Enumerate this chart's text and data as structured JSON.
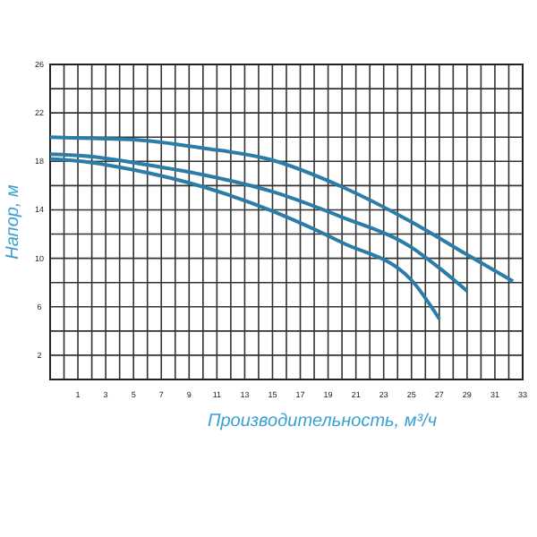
{
  "chart_data": {
    "type": "line",
    "xlabel": "Производительность, м³/ч",
    "ylabel": "Напор, м",
    "xlim": [
      -1,
      33
    ],
    "ylim": [
      0,
      26
    ],
    "xticks": [
      {
        "value": 0,
        "label": null
      },
      1,
      {
        "value": 2,
        "label": null
      },
      3,
      {
        "value": 4,
        "label": null
      },
      5,
      {
        "value": 6,
        "label": null
      },
      7,
      {
        "value": 8,
        "label": null
      },
      9,
      {
        "value": 10,
        "label": null
      },
      11,
      {
        "value": 12,
        "label": null
      },
      13,
      {
        "value": 14,
        "label": null
      },
      15,
      {
        "value": 16,
        "label": null
      },
      17,
      {
        "value": 18,
        "label": null
      },
      19,
      {
        "value": 20,
        "label": null
      },
      21,
      {
        "value": 22,
        "label": null
      },
      23,
      {
        "value": 24,
        "label": null
      },
      25,
      {
        "value": 26,
        "label": null
      },
      27,
      {
        "value": 28,
        "label": null
      },
      29,
      {
        "value": 30,
        "label": null
      },
      31,
      {
        "value": 32,
        "label": null
      },
      33
    ],
    "yticks": [
      2,
      {
        "value": 4,
        "label": null
      },
      6,
      {
        "value": 8,
        "label": null
      },
      10,
      {
        "value": 12,
        "label": null
      },
      14,
      {
        "value": 16,
        "label": null
      },
      18,
      {
        "value": 20,
        "label": null
      },
      22,
      {
        "value": 24,
        "label": null
      },
      26
    ],
    "grid": true,
    "marker": "none",
    "line_style": "solid",
    "series": [
      {
        "color": "#2b7ca6",
        "x": [
          -1,
          2,
          5,
          10,
          15,
          20,
          25,
          29,
          32.3
        ],
        "values": [
          20,
          19.9,
          19.8,
          19.1,
          18.1,
          15.9,
          13,
          10.3,
          8.1
        ]
      },
      {
        "color": "#2b7ca6",
        "x": [
          -1,
          2,
          5,
          10,
          15,
          20,
          25,
          27,
          29
        ],
        "values": [
          18.6,
          18.4,
          17.9,
          16.9,
          15.5,
          13.4,
          10.9,
          9.2,
          7.3
        ]
      },
      {
        "color": "#2b7ca6",
        "x": [
          -1,
          2,
          5,
          10,
          15,
          20,
          25,
          27
        ],
        "values": [
          18.2,
          17.9,
          17.3,
          15.9,
          13.9,
          11.3,
          8.2,
          5
        ]
      }
    ]
  }
}
